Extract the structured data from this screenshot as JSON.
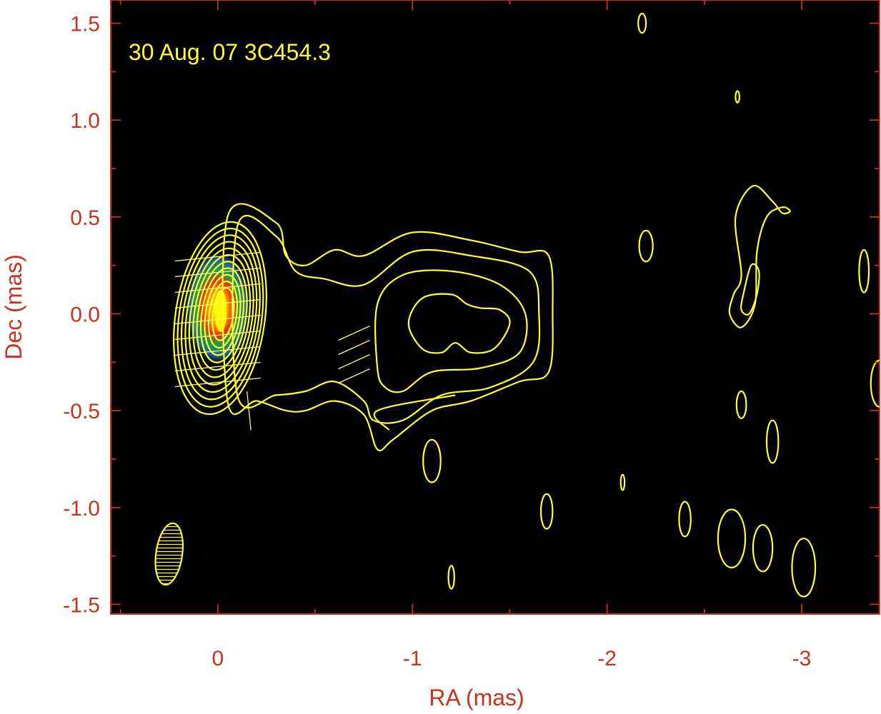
{
  "chart_data": {
    "type": "contour",
    "annotation": "30 Aug. 07  3C454.3",
    "xlabel": "RA (mas)",
    "ylabel": "Dec (mas)",
    "xlim": [
      0.55,
      -3.4
    ],
    "ylim": [
      -1.55,
      1.62
    ],
    "xticks": [
      0,
      -1,
      -2,
      -3
    ],
    "xtick_labels": [
      "0",
      "-1",
      "-2",
      "-3"
    ],
    "yticks": [
      1.5,
      1.0,
      0.5,
      0.0,
      -0.5,
      -1.0,
      -1.5
    ],
    "ytick_labels": [
      "1.5",
      "1.0",
      "0.5",
      "0.0",
      "-0.5",
      "-1.0",
      "-1.5"
    ],
    "colors": {
      "background": "#000000",
      "axis": "#c8321e",
      "contour": "#ffff33",
      "core_peak": "#ffff00",
      "core_hot": "#e83010",
      "core_mid": "#18a04a",
      "core_outer": "#2060a0"
    },
    "core": {
      "ra": 0.0,
      "dec": 0.0,
      "ra_halfwidth": 0.23,
      "dec_halfwidth": 0.5
    },
    "core_contour_count": 11,
    "jet_contours": [
      {
        "name": "jet-contour-outer",
        "points": [
          [
            -0.05,
            0.5
          ],
          [
            -0.3,
            0.47
          ],
          [
            -0.35,
            0.3
          ],
          [
            -0.45,
            0.25
          ],
          [
            -0.6,
            0.33
          ],
          [
            -0.75,
            0.3
          ],
          [
            -1.0,
            0.42
          ],
          [
            -1.3,
            0.38
          ],
          [
            -1.55,
            0.32
          ],
          [
            -1.7,
            0.3
          ],
          [
            -1.72,
            0.0
          ],
          [
            -1.7,
            -0.3
          ],
          [
            -1.55,
            -0.35
          ],
          [
            -1.3,
            -0.45
          ],
          [
            -1.1,
            -0.5
          ],
          [
            -0.9,
            -0.65
          ],
          [
            -0.82,
            -0.7
          ],
          [
            -0.75,
            -0.52
          ],
          [
            -0.6,
            -0.45
          ],
          [
            -0.45,
            -0.5
          ],
          [
            -0.35,
            -0.5
          ],
          [
            -0.2,
            -0.45
          ],
          [
            -0.05,
            -0.45
          ]
        ]
      },
      {
        "name": "jet-contour-2",
        "points": [
          [
            -0.1,
            0.45
          ],
          [
            -0.3,
            0.4
          ],
          [
            -0.4,
            0.22
          ],
          [
            -0.55,
            0.18
          ],
          [
            -0.75,
            0.15
          ],
          [
            -1.0,
            0.32
          ],
          [
            -1.3,
            0.3
          ],
          [
            -1.6,
            0.22
          ],
          [
            -1.65,
            0.0
          ],
          [
            -1.62,
            -0.25
          ],
          [
            -1.4,
            -0.38
          ],
          [
            -1.15,
            -0.42
          ],
          [
            -0.95,
            -0.55
          ],
          [
            -0.8,
            -0.55
          ],
          [
            -0.75,
            -0.45
          ],
          [
            -0.6,
            -0.35
          ],
          [
            -0.45,
            -0.4
          ],
          [
            -0.3,
            -0.42
          ],
          [
            -0.1,
            -0.42
          ]
        ]
      },
      {
        "name": "jet-contour-3",
        "points": [
          [
            -0.82,
            -0.28
          ],
          [
            -0.82,
            0.05
          ],
          [
            -0.95,
            0.2
          ],
          [
            -1.2,
            0.22
          ],
          [
            -1.45,
            0.15
          ],
          [
            -1.58,
            0.0
          ],
          [
            -1.55,
            -0.2
          ],
          [
            -1.35,
            -0.28
          ],
          [
            -1.1,
            -0.3
          ],
          [
            -0.95,
            -0.4
          ],
          [
            -0.86,
            -0.38
          ]
        ]
      },
      {
        "name": "jet-contour-inner",
        "points": [
          [
            -0.98,
            -0.05
          ],
          [
            -1.05,
            0.08
          ],
          [
            -1.2,
            0.1
          ],
          [
            -1.28,
            0.05
          ],
          [
            -1.35,
            0.03
          ],
          [
            -1.45,
            0.02
          ],
          [
            -1.5,
            -0.05
          ],
          [
            -1.42,
            -0.18
          ],
          [
            -1.3,
            -0.2
          ],
          [
            -1.22,
            -0.15
          ],
          [
            -1.15,
            -0.2
          ],
          [
            -1.05,
            -0.18
          ]
        ]
      }
    ],
    "isolated_contours": [
      {
        "ra": -2.18,
        "dec": 1.5,
        "rx": 0.02,
        "ry": 0.05
      },
      {
        "ra": -2.67,
        "dec": 1.12,
        "rx": 0.01,
        "ry": 0.03
      },
      {
        "ra": -2.2,
        "dec": 0.35,
        "rx": 0.035,
        "ry": 0.08
      },
      {
        "ra": -3.32,
        "dec": 0.22,
        "rx": 0.025,
        "ry": 0.11
      },
      {
        "ra": -3.4,
        "dec": -0.36,
        "rx": 0.045,
        "ry": 0.12
      },
      {
        "ra": -2.69,
        "dec": -0.47,
        "rx": 0.025,
        "ry": 0.07
      },
      {
        "ra": -2.85,
        "dec": -0.66,
        "rx": 0.03,
        "ry": 0.11
      },
      {
        "ra": -1.1,
        "dec": -0.76,
        "rx": 0.045,
        "ry": 0.11
      },
      {
        "ra": -2.08,
        "dec": -0.87,
        "rx": 0.01,
        "ry": 0.04
      },
      {
        "ra": -1.69,
        "dec": -1.02,
        "rx": 0.03,
        "ry": 0.09
      },
      {
        "ra": -2.4,
        "dec": -1.06,
        "rx": 0.03,
        "ry": 0.09
      },
      {
        "ra": -2.64,
        "dec": -1.16,
        "rx": 0.07,
        "ry": 0.15
      },
      {
        "ra": -2.8,
        "dec": -1.21,
        "rx": 0.05,
        "ry": 0.12
      },
      {
        "ra": -3.01,
        "dec": -1.31,
        "rx": 0.06,
        "ry": 0.15
      },
      {
        "ra": -1.2,
        "dec": -1.36,
        "rx": 0.015,
        "ry": 0.06
      }
    ],
    "open_contours": [
      {
        "name": "knot-contour-east",
        "points": [
          [
            -2.69,
            0.2
          ],
          [
            -2.66,
            0.5
          ],
          [
            -2.75,
            0.66
          ],
          [
            -2.85,
            0.58
          ],
          [
            -2.9,
            0.52
          ],
          [
            -2.94,
            0.53
          ],
          [
            -2.9,
            0.55
          ],
          [
            -2.82,
            0.5
          ],
          [
            -2.77,
            0.32
          ],
          [
            -2.76,
            0.05
          ],
          [
            -2.69,
            -0.07
          ],
          [
            -2.63,
            0.0
          ],
          [
            -2.65,
            0.1
          ]
        ]
      },
      {
        "name": "knot-contour-east-inner",
        "points": [
          [
            -2.74,
            0.25
          ],
          [
            -2.7,
            0.1
          ],
          [
            -2.69,
            0.02
          ],
          [
            -2.73,
            0.0
          ],
          [
            -2.77,
            0.1
          ],
          [
            -2.78,
            0.22
          ]
        ]
      },
      {
        "name": "jet-filament",
        "points": [
          [
            -0.88,
            -0.6
          ],
          [
            -0.82,
            -0.5
          ],
          [
            -1.22,
            -0.42
          ]
        ]
      }
    ],
    "beam": {
      "ra": 0.25,
      "dec": -1.24,
      "major": 0.32,
      "minor": 0.135,
      "pa_deg": 8
    }
  }
}
